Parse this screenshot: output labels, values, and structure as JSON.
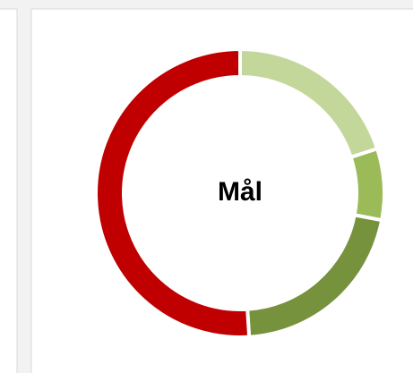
{
  "chart_data": {
    "type": "donut",
    "center_label": "Mål",
    "values": [
      20,
      8,
      21,
      51
    ],
    "colors": [
      "#c4d79b",
      "#9bbb59",
      "#76923c",
      "#c00000"
    ]
  }
}
